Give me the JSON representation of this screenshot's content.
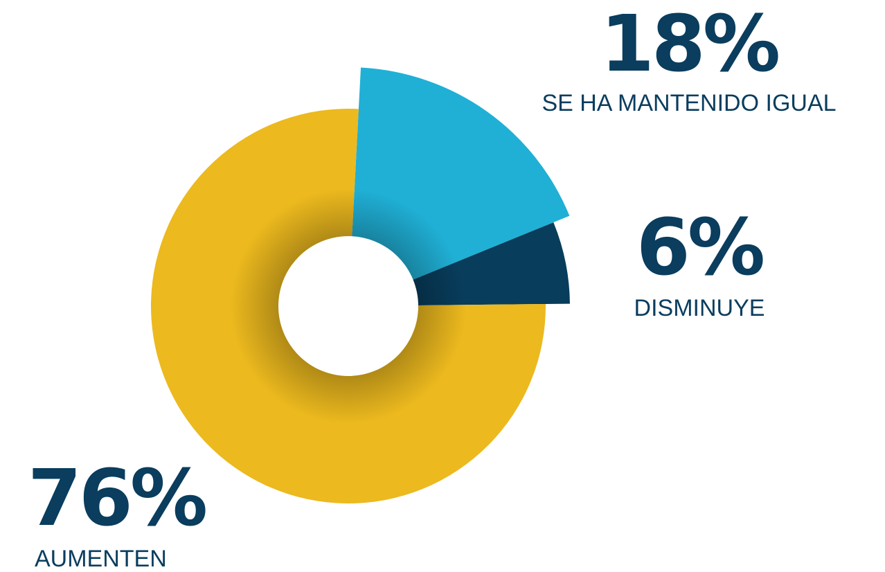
{
  "chart_data": {
    "type": "donut",
    "categories": [
      "AUMENTEN",
      "SE HA MANTENIDO IGUAL",
      "DISMINUYE"
    ],
    "values": [
      76,
      18,
      6
    ],
    "value_labels": [
      "76%",
      "18%",
      "6%"
    ],
    "colors": [
      "#ecb91e",
      "#20b0d6",
      "#083d5c"
    ]
  }
}
